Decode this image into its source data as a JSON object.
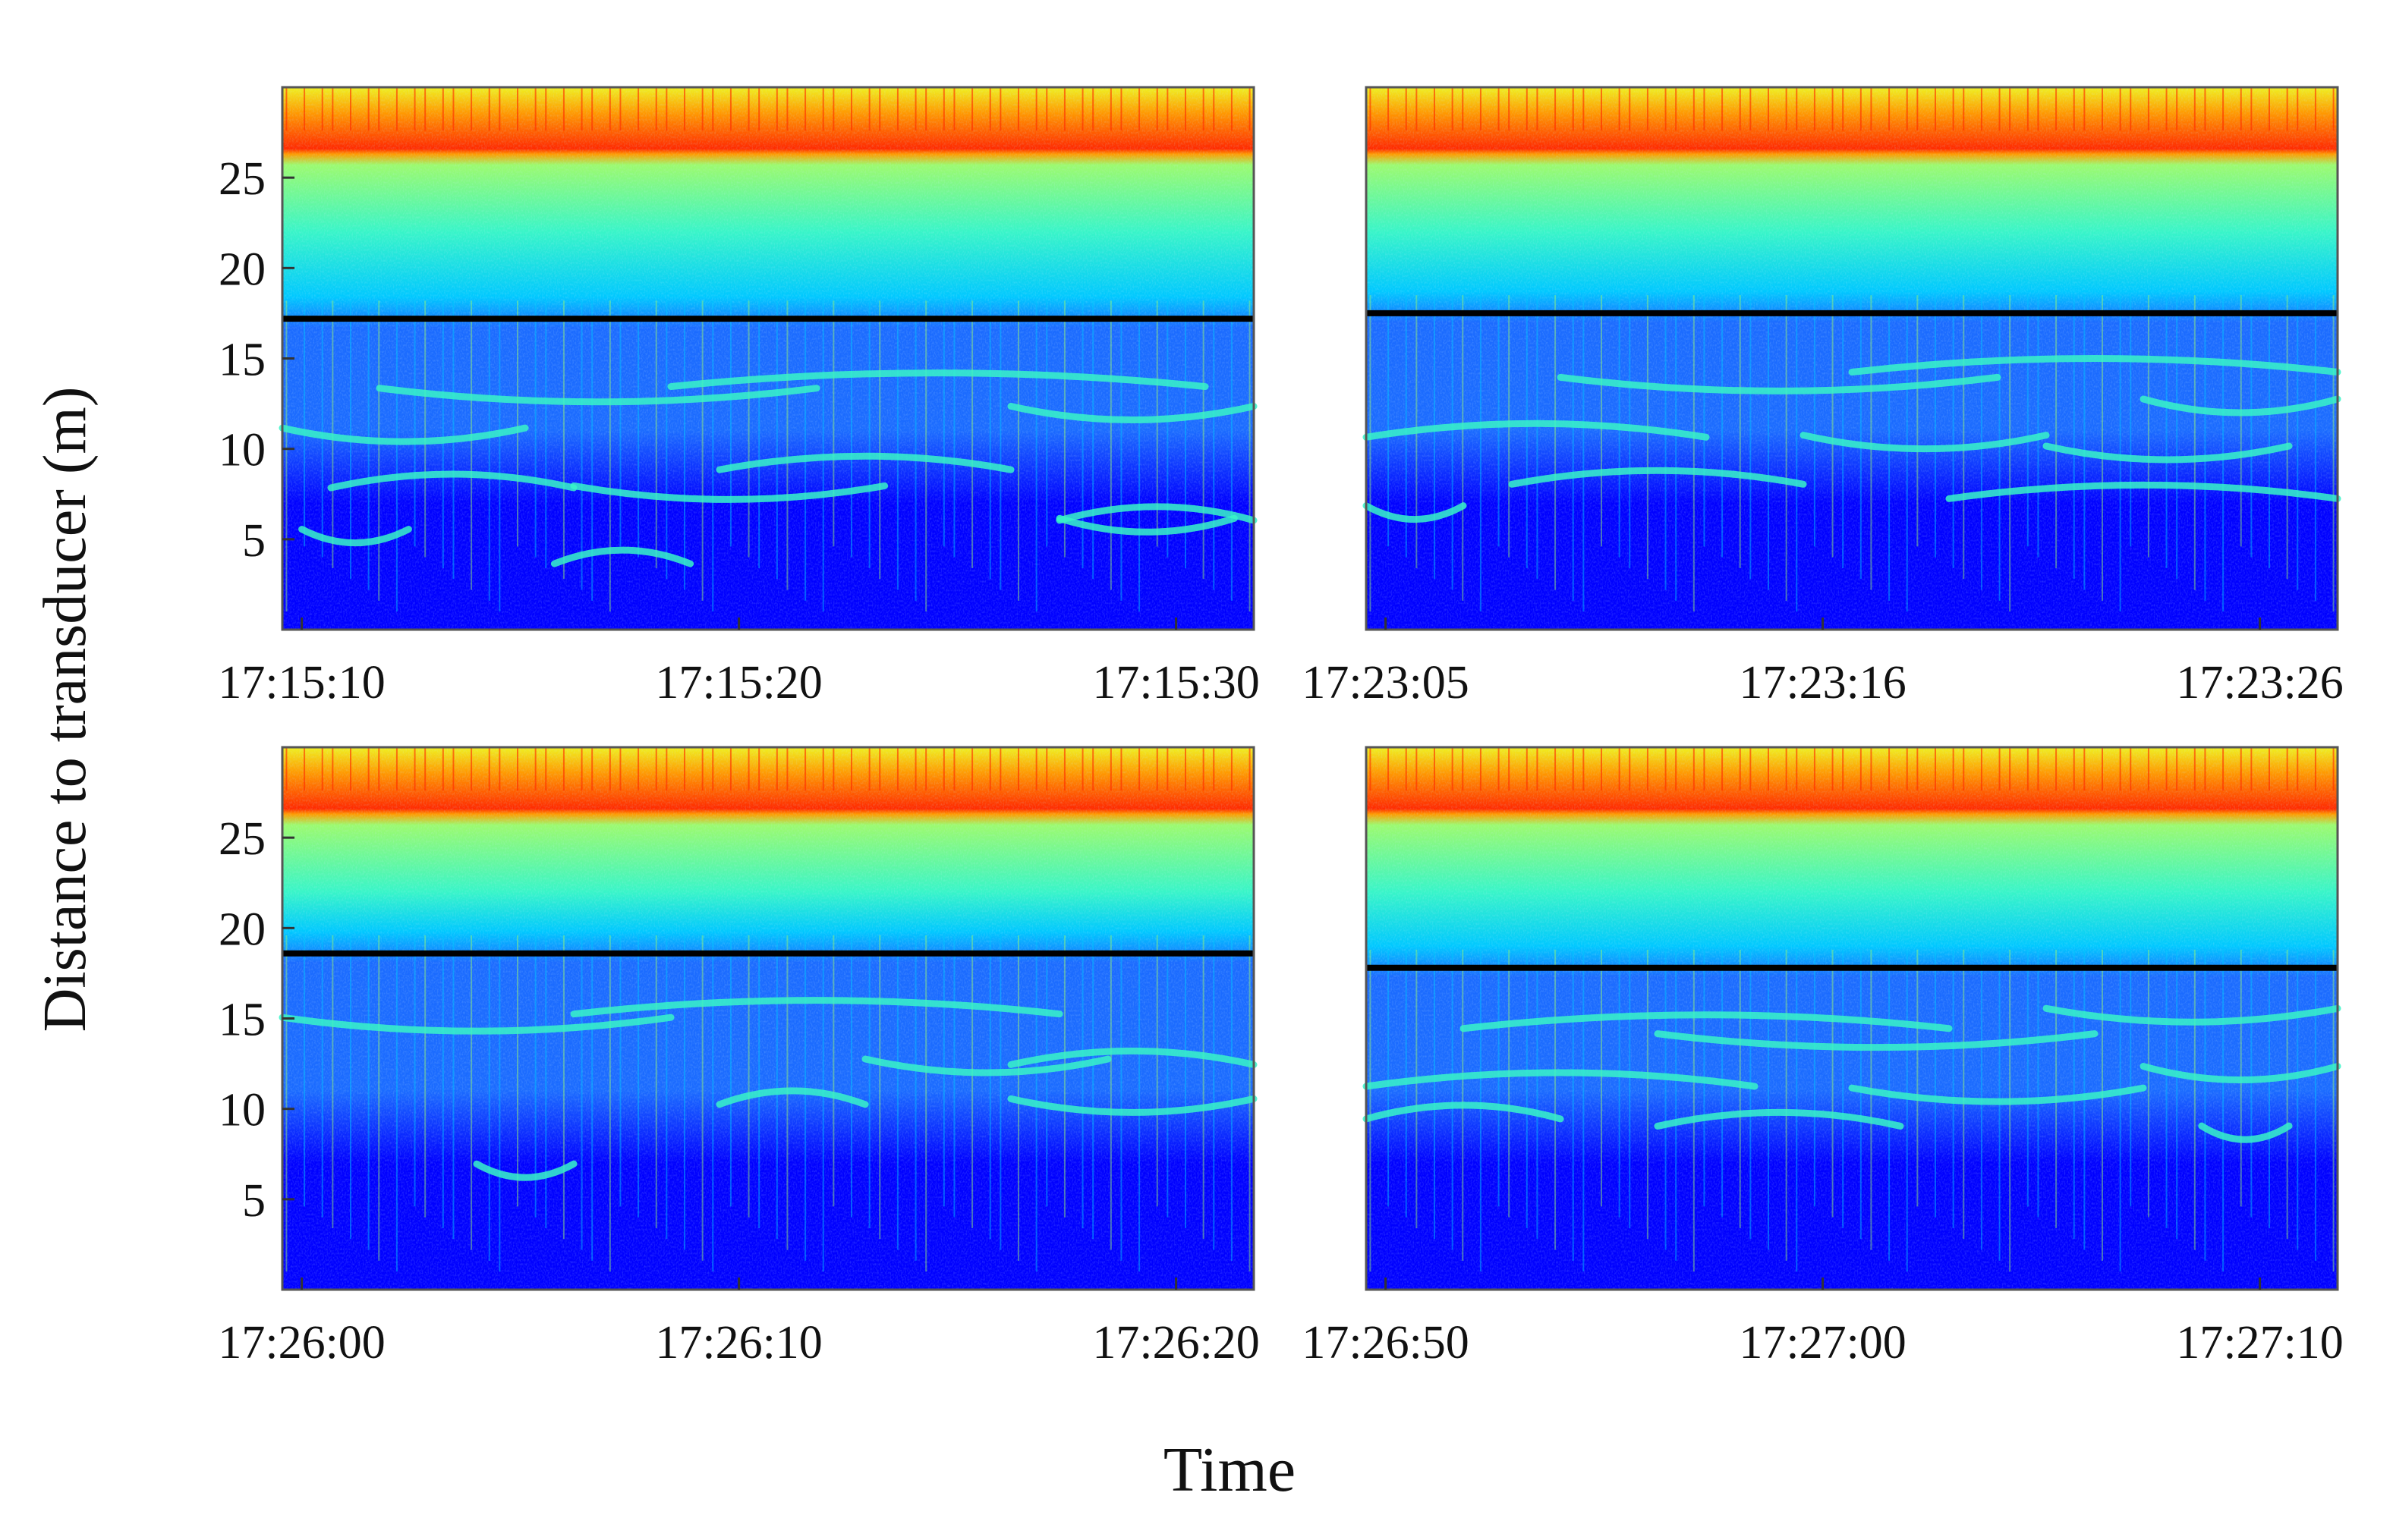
{
  "figure": {
    "ylabel": "Distance to transducer (m)",
    "xlabel": "Time"
  },
  "colors": {
    "colormap": [
      "#00008f",
      "#0000ff",
      "#1b6bff",
      "#00c8ff",
      "#38f5c8",
      "#9cfa6e",
      "#f0f020",
      "#ff9a00",
      "#ff2a00",
      "#b00000"
    ],
    "boundary_line": "#000000",
    "axes_frame": "#555555"
  },
  "chart_data": [
    {
      "type": "heatmap",
      "panel": "top-left",
      "title": "",
      "xlabel": "",
      "ylabel": "Distance to transducer (m)",
      "x_ticks": [
        "17:15:10",
        "17:15:20",
        "17:15:30"
      ],
      "y_ticks": [
        5,
        10,
        15,
        20,
        25
      ],
      "ylim": [
        0,
        30
      ],
      "boundary_line_y": 17.2,
      "surface_band_y": [
        26.3,
        30
      ],
      "layers": [
        {
          "y": 4.8,
          "x0": 0.02,
          "x1": 0.13
        },
        {
          "y": 4.4,
          "x0": 0.28,
          "x1": 0.42
        },
        {
          "y": 7.2,
          "x0": 0.3,
          "x1": 0.62
        },
        {
          "y": 8.6,
          "x0": 0.05,
          "x1": 0.3
        },
        {
          "y": 5.4,
          "x0": 0.8,
          "x1": 0.98
        },
        {
          "y": 6.8,
          "x0": 0.8,
          "x1": 1.0
        },
        {
          "y": 10.4,
          "x0": 0.0,
          "x1": 0.25
        },
        {
          "y": 9.6,
          "x0": 0.45,
          "x1": 0.75
        },
        {
          "y": 12.6,
          "x0": 0.1,
          "x1": 0.55
        },
        {
          "y": 14.2,
          "x0": 0.4,
          "x1": 0.95
        },
        {
          "y": 11.6,
          "x0": 0.75,
          "x1": 1.0
        }
      ]
    },
    {
      "type": "heatmap",
      "panel": "top-right",
      "title": "",
      "xlabel": "",
      "ylabel": "",
      "x_ticks": [
        "17:23:05",
        "17:23:16",
        "17:23:26"
      ],
      "y_ticks": [],
      "ylim": [
        0,
        30
      ],
      "boundary_line_y": 17.5,
      "surface_band_y": [
        26.3,
        30
      ],
      "layers": [
        {
          "y": 6.1,
          "x0": 0.0,
          "x1": 0.1
        },
        {
          "y": 8.8,
          "x0": 0.15,
          "x1": 0.45
        },
        {
          "y": 10.0,
          "x0": 0.45,
          "x1": 0.7
        },
        {
          "y": 8.0,
          "x0": 0.6,
          "x1": 1.0
        },
        {
          "y": 9.4,
          "x0": 0.7,
          "x1": 0.95
        },
        {
          "y": 11.4,
          "x0": 0.0,
          "x1": 0.35
        },
        {
          "y": 13.2,
          "x0": 0.2,
          "x1": 0.65
        },
        {
          "y": 15.0,
          "x0": 0.5,
          "x1": 1.0
        },
        {
          "y": 12.0,
          "x0": 0.8,
          "x1": 1.0
        }
      ]
    },
    {
      "type": "heatmap",
      "panel": "bottom-left",
      "title": "",
      "xlabel": "",
      "ylabel": "Distance to transducer (m)",
      "x_ticks": [
        "17:26:00",
        "17:26:10",
        "17:26:20"
      ],
      "y_ticks": [
        5,
        10,
        15,
        20,
        25
      ],
      "ylim": [
        0,
        30
      ],
      "boundary_line_y": 18.6,
      "surface_band_y": [
        26.3,
        30
      ],
      "layers": [
        {
          "y": 6.2,
          "x0": 0.2,
          "x1": 0.3
        },
        {
          "y": 11.0,
          "x0": 0.45,
          "x1": 0.6
        },
        {
          "y": 9.8,
          "x0": 0.75,
          "x1": 1.0
        },
        {
          "y": 13.2,
          "x0": 0.75,
          "x1": 1.0
        },
        {
          "y": 14.3,
          "x0": 0.0,
          "x1": 0.4
        },
        {
          "y": 16.0,
          "x0": 0.3,
          "x1": 0.8
        },
        {
          "y": 12.0,
          "x0": 0.6,
          "x1": 0.85
        }
      ]
    },
    {
      "type": "heatmap",
      "panel": "bottom-right",
      "title": "",
      "xlabel": "",
      "ylabel": "",
      "x_ticks": [
        "17:26:50",
        "17:27:00",
        "17:27:10"
      ],
      "y_ticks": [],
      "ylim": [
        0,
        30
      ],
      "boundary_line_y": 17.8,
      "surface_band_y": [
        26.3,
        30
      ],
      "layers": [
        {
          "y": 8.3,
          "x0": 0.86,
          "x1": 0.95
        },
        {
          "y": 9.8,
          "x0": 0.3,
          "x1": 0.55
        },
        {
          "y": 10.4,
          "x0": 0.5,
          "x1": 0.8
        },
        {
          "y": 10.2,
          "x0": 0.0,
          "x1": 0.2
        },
        {
          "y": 11.6,
          "x0": 0.8,
          "x1": 1.0
        },
        {
          "y": 12.0,
          "x0": 0.0,
          "x1": 0.4
        },
        {
          "y": 13.4,
          "x0": 0.3,
          "x1": 0.75
        },
        {
          "y": 15.2,
          "x0": 0.1,
          "x1": 0.6
        },
        {
          "y": 14.8,
          "x0": 0.7,
          "x1": 1.0
        }
      ]
    }
  ]
}
